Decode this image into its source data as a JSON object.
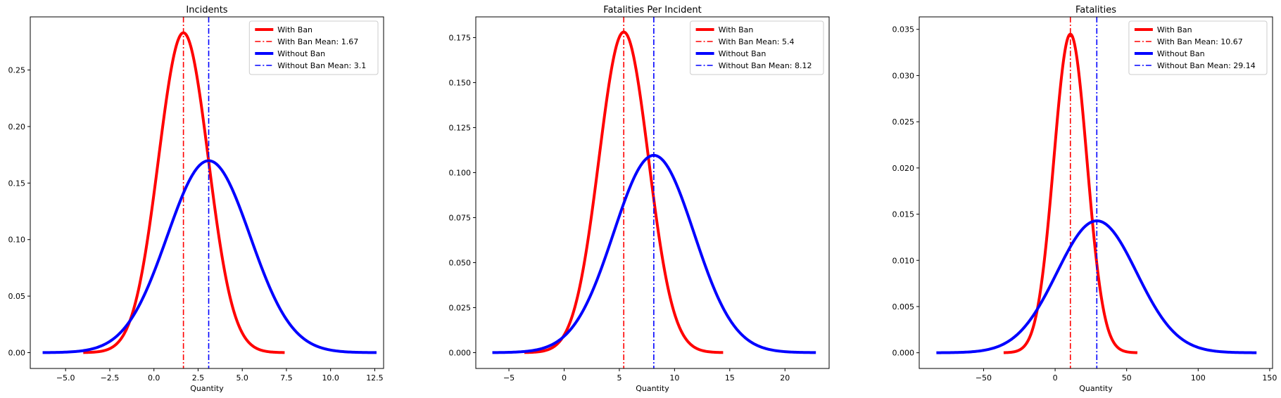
{
  "chart_data": [
    {
      "type": "line",
      "title": "Incidents",
      "xlabel": "Quantity",
      "ylabel": "",
      "xlim": [
        -7,
        13
      ],
      "ylim": [
        -0.014,
        0.297
      ],
      "xticks": [
        -5.0,
        -2.5,
        0.0,
        2.5,
        5.0,
        7.5,
        10.0,
        12.5
      ],
      "xtick_labels": [
        "−5.0",
        "−2.5",
        "0.0",
        "2.5",
        "5.0",
        "7.5",
        "10.0",
        "12.5"
      ],
      "yticks": [
        0.0,
        0.05,
        0.1,
        0.15,
        0.2,
        0.25
      ],
      "ytick_labels": [
        "0.00",
        "0.05",
        "0.10",
        "0.15",
        "0.20",
        "0.25"
      ],
      "grid": false,
      "legend_position": "top-right",
      "series": [
        {
          "name": "With Ban",
          "kind": "normal_curve",
          "mean": 1.67,
          "sd": 1.41,
          "x_range": [
            -4.0,
            7.4
          ],
          "color": "#ff0000"
        },
        {
          "name": "With Ban Mean: 1.67",
          "kind": "vline",
          "x": 1.67,
          "color": "#ff0000"
        },
        {
          "name": "Without Ban",
          "kind": "normal_curve",
          "mean": 3.1,
          "sd": 2.35,
          "x_range": [
            -6.3,
            12.6
          ],
          "color": "#0000ff"
        },
        {
          "name": "Without Ban Mean: 3.1",
          "kind": "vline",
          "x": 3.1,
          "color": "#0000ff"
        }
      ]
    },
    {
      "type": "line",
      "title": "Fatalities Per Incident",
      "xlabel": "Quantity",
      "ylabel": "",
      "xlim": [
        -8,
        24
      ],
      "ylim": [
        -0.0088,
        0.1865
      ],
      "xticks": [
        -5,
        0,
        5,
        10,
        15,
        20
      ],
      "xtick_labels": [
        "−5",
        "0",
        "5",
        "10",
        "15",
        "20"
      ],
      "yticks": [
        0.0,
        0.025,
        0.05,
        0.075,
        0.1,
        0.125,
        0.15,
        0.175
      ],
      "ytick_labels": [
        "0.000",
        "0.025",
        "0.050",
        "0.075",
        "0.100",
        "0.125",
        "0.150",
        "0.175"
      ],
      "grid": false,
      "legend_position": "top-right",
      "series": [
        {
          "name": "With Ban",
          "kind": "normal_curve",
          "mean": 5.4,
          "sd": 2.24,
          "x_range": [
            -3.6,
            14.4
          ],
          "color": "#ff0000"
        },
        {
          "name": "With Ban Mean: 5.4",
          "kind": "vline",
          "x": 5.4,
          "color": "#ff0000"
        },
        {
          "name": "Without Ban",
          "kind": "normal_curve",
          "mean": 8.12,
          "sd": 3.64,
          "x_range": [
            -6.5,
            22.8
          ],
          "color": "#0000ff"
        },
        {
          "name": "Without Ban Mean: 8.12",
          "kind": "vline",
          "x": 8.12,
          "color": "#0000ff"
        }
      ]
    },
    {
      "type": "line",
      "title": "Fatalities",
      "xlabel": "Quantity",
      "ylabel": "",
      "xlim": [
        -95,
        152
      ],
      "ylim": [
        -0.0017,
        0.03635
      ],
      "xticks": [
        -50,
        0,
        50,
        100,
        150
      ],
      "xtick_labels": [
        "−50",
        "0",
        "50",
        "100",
        "150"
      ],
      "yticks": [
        0.0,
        0.005,
        0.01,
        0.015,
        0.02,
        0.025,
        0.03,
        0.035
      ],
      "ytick_labels": [
        "0.000",
        "0.005",
        "0.010",
        "0.015",
        "0.020",
        "0.025",
        "0.030",
        "0.035"
      ],
      "grid": false,
      "legend_position": "top-right",
      "series": [
        {
          "name": "With Ban",
          "kind": "normal_curve",
          "mean": 10.67,
          "sd": 11.57,
          "x_range": [
            -36,
            57.5
          ],
          "color": "#ff0000"
        },
        {
          "name": "With Ban Mean: 10.67",
          "kind": "vline",
          "x": 10.67,
          "color": "#ff0000"
        },
        {
          "name": "Without Ban",
          "kind": "normal_curve",
          "mean": 29.14,
          "sd": 27.94,
          "x_range": [
            -83,
            140.8
          ],
          "color": "#0000ff"
        },
        {
          "name": "Without Ban Mean: 29.14",
          "kind": "vline",
          "x": 29.14,
          "color": "#0000ff"
        }
      ]
    }
  ]
}
